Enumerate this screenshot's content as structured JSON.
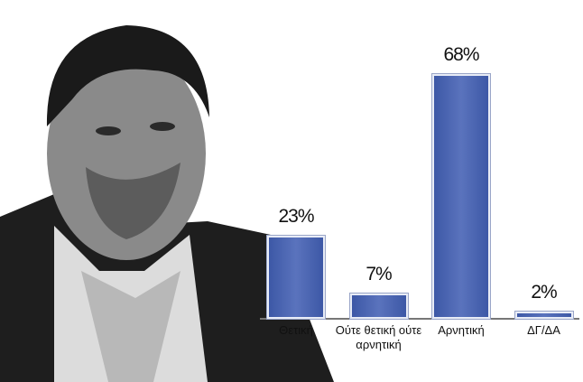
{
  "chart_data": {
    "type": "bar",
    "categories": [
      "Θετική",
      "Ούτε θετική ούτε αρνητική",
      "Αρνητική",
      "ΔΓ/ΔΑ"
    ],
    "values": [
      23,
      7,
      68,
      2
    ],
    "value_labels": [
      "23%",
      "7%",
      "68%",
      "2%"
    ],
    "color": "#3d58a6"
  }
}
